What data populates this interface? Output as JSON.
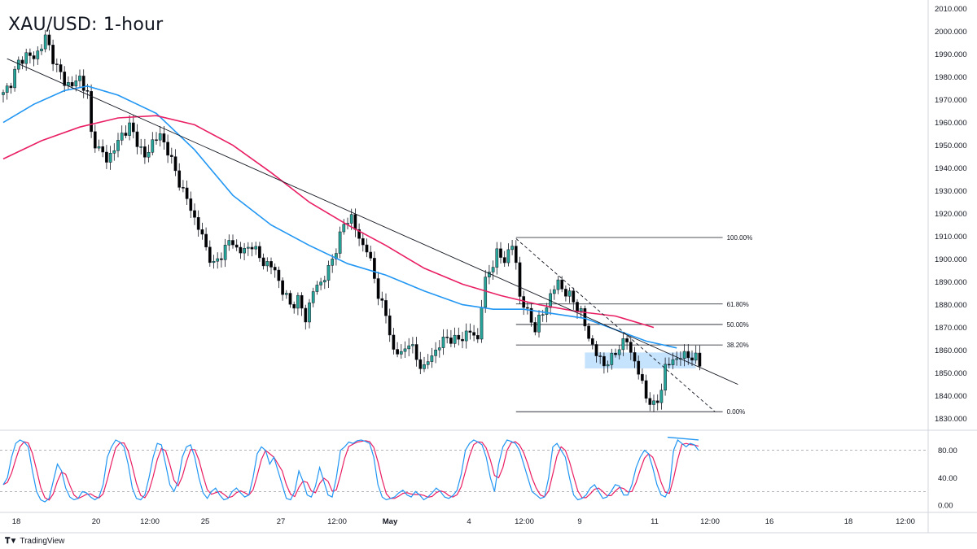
{
  "title": "XAU/USD: 1-hour",
  "brand": {
    "logo_icon": "tradingview-logo-icon",
    "name": "TradingView"
  },
  "colors": {
    "up_candle": "#26a69a",
    "down_candle": "#000000",
    "ema_fast": "#2196f3",
    "ema_slow": "#e91e63",
    "stoch_k": "#2196f3",
    "stoch_d": "#e91e63",
    "zone": "#bbdefb",
    "axis_text": "#131722",
    "grid": "#e0e3eb"
  },
  "chart_data": [
    {
      "type": "candlestick",
      "title": "XAU/USD: 1-hour",
      "y_ticks": [
        "2010.000",
        "2000.000",
        "1990.000",
        "1980.000",
        "1970.000",
        "1960.000",
        "1950.000",
        "1940.000",
        "1930.000",
        "1920.000",
        "1910.000",
        "1900.000",
        "1890.000",
        "1880.000",
        "1870.000",
        "1860.000",
        "1850.000",
        "1840.000",
        "1830.000"
      ],
      "ylim": [
        1827,
        2012
      ],
      "x_ticks": [
        "18",
        "20",
        "12:00",
        "25",
        "27",
        "12:00",
        "May",
        "4",
        "12:00",
        "9",
        "11",
        "12:00",
        "16",
        "18",
        "12:00"
      ],
      "price_anchors": [
        [
          0,
          1972
        ],
        [
          2,
          1978
        ],
        [
          4,
          1986
        ],
        [
          6,
          1990
        ],
        [
          8,
          1988
        ],
        [
          10,
          1994
        ],
        [
          11,
          1997
        ],
        [
          12,
          1993
        ],
        [
          14,
          1984
        ],
        [
          16,
          1978
        ],
        [
          18,
          1976
        ],
        [
          20,
          1980
        ],
        [
          22,
          1972
        ],
        [
          23,
          1955
        ],
        [
          25,
          1948
        ],
        [
          27,
          1944
        ],
        [
          29,
          1948
        ],
        [
          31,
          1955
        ],
        [
          33,
          1958
        ],
        [
          35,
          1952
        ],
        [
          37,
          1944
        ],
        [
          39,
          1952
        ],
        [
          41,
          1954
        ],
        [
          43,
          1948
        ],
        [
          45,
          1938
        ],
        [
          47,
          1930
        ],
        [
          49,
          1922
        ],
        [
          51,
          1914
        ],
        [
          53,
          1905
        ],
        [
          55,
          1897
        ],
        [
          57,
          1902
        ],
        [
          59,
          1908
        ],
        [
          61,
          1905
        ],
        [
          63,
          1903
        ],
        [
          65,
          1907
        ],
        [
          67,
          1900
        ],
        [
          69,
          1898
        ],
        [
          71,
          1895
        ],
        [
          73,
          1886
        ],
        [
          75,
          1880
        ],
        [
          77,
          1882
        ],
        [
          79,
          1874
        ],
        [
          81,
          1886
        ],
        [
          83,
          1890
        ],
        [
          85,
          1895
        ],
        [
          87,
          1905
        ],
        [
          89,
          1915
        ],
        [
          91,
          1919
        ],
        [
          93,
          1908
        ],
        [
          95,
          1905
        ],
        [
          96,
          1898
        ],
        [
          98,
          1885
        ],
        [
          100,
          1875
        ],
        [
          102,
          1860
        ],
        [
          104,
          1858
        ],
        [
          106,
          1864
        ],
        [
          108,
          1856
        ],
        [
          110,
          1852
        ],
        [
          112,
          1858
        ],
        [
          114,
          1862
        ],
        [
          116,
          1866
        ],
        [
          118,
          1864
        ],
        [
          120,
          1866
        ],
        [
          122,
          1868
        ],
        [
          124,
          1865
        ],
        [
          125,
          1880
        ],
        [
          126,
          1890
        ],
        [
          127,
          1895
        ],
        [
          129,
          1902
        ],
        [
          131,
          1900
        ],
        [
          133,
          1906
        ],
        [
          134,
          1898
        ],
        [
          135,
          1884
        ],
        [
          137,
          1876
        ],
        [
          139,
          1870
        ],
        [
          141,
          1876
        ],
        [
          143,
          1884
        ],
        [
          145,
          1890
        ],
        [
          147,
          1885
        ],
        [
          149,
          1882
        ],
        [
          151,
          1876
        ],
        [
          153,
          1866
        ],
        [
          155,
          1858
        ],
        [
          157,
          1854
        ],
        [
          159,
          1856
        ],
        [
          161,
          1862
        ],
        [
          163,
          1864
        ],
        [
          165,
          1855
        ],
        [
          166,
          1850
        ],
        [
          168,
          1840
        ],
        [
          170,
          1835
        ],
        [
          171,
          1838
        ],
        [
          172,
          1844
        ],
        [
          173,
          1852
        ],
        [
          175,
          1856
        ],
        [
          177,
          1857
        ],
        [
          179,
          1858
        ],
        [
          181,
          1856
        ],
        [
          182,
          1854
        ]
      ],
      "indicators": [
        {
          "name": "EMA fast",
          "color": "#2196f3",
          "points": [
            [
              0,
              1960
            ],
            [
              8,
              1968
            ],
            [
              16,
              1974
            ],
            [
              22,
              1976
            ],
            [
              30,
              1972
            ],
            [
              40,
              1964
            ],
            [
              50,
              1948
            ],
            [
              60,
              1928
            ],
            [
              70,
              1915
            ],
            [
              80,
              1906
            ],
            [
              90,
              1898
            ],
            [
              100,
              1893
            ],
            [
              110,
              1886
            ],
            [
              120,
              1880
            ],
            [
              128,
              1878
            ],
            [
              136,
              1878
            ],
            [
              144,
              1876
            ],
            [
              152,
              1874
            ],
            [
              160,
              1869
            ],
            [
              168,
              1864
            ],
            [
              176,
              1861
            ]
          ]
        },
        {
          "name": "EMA slow",
          "color": "#e91e63",
          "points": [
            [
              0,
              1944
            ],
            [
              10,
              1952
            ],
            [
              20,
              1958
            ],
            [
              30,
              1962
            ],
            [
              40,
              1963
            ],
            [
              50,
              1959
            ],
            [
              60,
              1950
            ],
            [
              70,
              1938
            ],
            [
              80,
              1925
            ],
            [
              90,
              1915
            ],
            [
              100,
              1906
            ],
            [
              110,
              1896
            ],
            [
              120,
              1889
            ],
            [
              130,
              1884
            ],
            [
              140,
              1880
            ],
            [
              150,
              1877
            ],
            [
              160,
              1875
            ],
            [
              170,
              1870
            ]
          ]
        }
      ],
      "trendlines": [
        {
          "name": "descending-trendline",
          "style": "solid",
          "from": [
            1,
            1988
          ],
          "to": [
            192,
            1845
          ]
        },
        {
          "name": "fib-diagonal",
          "style": "dashed",
          "from": [
            134,
            1909
          ],
          "to": [
            186,
            1833
          ]
        }
      ],
      "fibonacci": {
        "x_start": 134,
        "x_end": 188,
        "levels": [
          {
            "label": "100.00%",
            "price": 1909.5
          },
          {
            "label": "61.80%",
            "price": 1880.3
          },
          {
            "label": "50.00%",
            "price": 1871.3
          },
          {
            "label": "38.20%",
            "price": 1862.3
          },
          {
            "label": "0.00%",
            "price": 1833.0
          }
        ]
      },
      "zone": {
        "name": "resistance-zone",
        "x_start": 152,
        "x_end": 181,
        "y_top": 1859,
        "y_bottom": 1852
      }
    },
    {
      "type": "line",
      "name": "stochastic-oscillator",
      "y_ticks": [
        "80.00",
        "40.00",
        "0.00"
      ],
      "ylim": [
        -8,
        108
      ],
      "levels": [
        80,
        20
      ],
      "k_values": [
        30,
        40,
        70,
        90,
        95,
        92,
        85,
        50,
        20,
        8,
        5,
        10,
        35,
        60,
        50,
        25,
        12,
        8,
        10,
        20,
        18,
        12,
        8,
        12,
        30,
        70,
        85,
        95,
        92,
        85,
        60,
        25,
        10,
        8,
        15,
        40,
        70,
        90,
        88,
        60,
        30,
        20,
        35,
        70,
        85,
        88,
        70,
        40,
        18,
        10,
        20,
        25,
        15,
        8,
        10,
        20,
        25,
        18,
        12,
        15,
        40,
        75,
        85,
        80,
        60,
        70,
        50,
        30,
        10,
        8,
        20,
        50,
        35,
        15,
        12,
        28,
        55,
        35,
        15,
        12,
        40,
        80,
        85,
        92,
        90,
        94,
        95,
        93,
        90,
        70,
        30,
        12,
        8,
        10,
        12,
        18,
        22,
        15,
        12,
        20,
        15,
        8,
        12,
        18,
        25,
        20,
        12,
        10,
        14,
        22,
        45,
        80,
        90,
        95,
        92,
        88,
        70,
        40,
        20,
        60,
        85,
        95,
        93,
        90,
        80,
        60,
        40,
        20,
        15,
        10,
        12,
        40,
        85,
        90,
        80,
        70,
        40,
        15,
        8,
        10,
        15,
        25,
        30,
        20,
        10,
        12,
        20,
        30,
        28,
        15,
        15,
        30,
        55,
        70,
        80,
        75,
        55,
        30,
        15,
        12,
        25,
        80,
        95,
        90,
        85,
        90,
        88,
        80
      ]
    }
  ]
}
